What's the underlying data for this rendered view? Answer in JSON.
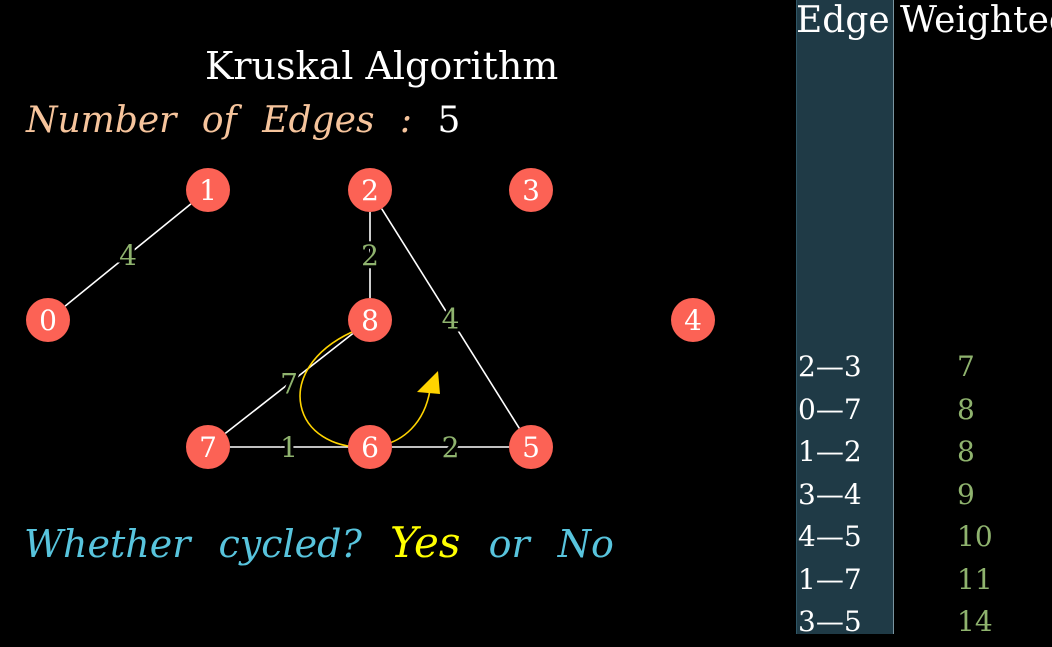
{
  "title": "Kruskal Algorithm",
  "num_edges": {
    "label": "Number   of   Edges :",
    "value": "5"
  },
  "graph": {
    "nodes": [
      {
        "id": "0",
        "label": "0"
      },
      {
        "id": "1",
        "label": "1"
      },
      {
        "id": "2",
        "label": "2"
      },
      {
        "id": "3",
        "label": "3"
      },
      {
        "id": "4",
        "label": "4"
      },
      {
        "id": "5",
        "label": "5"
      },
      {
        "id": "6",
        "label": "6"
      },
      {
        "id": "7",
        "label": "7"
      },
      {
        "id": "8",
        "label": "8"
      }
    ],
    "edges": [
      {
        "from": "0",
        "to": "1",
        "weight": "4"
      },
      {
        "from": "2",
        "to": "8",
        "weight": "2"
      },
      {
        "from": "2",
        "to": "5",
        "weight": "4"
      },
      {
        "from": "8",
        "to": "7",
        "weight": "7"
      },
      {
        "from": "7",
        "to": "6",
        "weight": "1"
      },
      {
        "from": "6",
        "to": "5",
        "weight": "2"
      }
    ],
    "node_color": "#fc6255",
    "edge_color": "#ffffff",
    "weight_color": "#8fb36e",
    "cycle_color": "#ffd400"
  },
  "cycle_question": {
    "prefix": "Whether   cycled?",
    "yes": "Yes",
    "or": "or",
    "no": "No"
  },
  "table": {
    "header_edge": "Edge",
    "header_weight": "Weighted",
    "rows": [
      {
        "edge": "2—3",
        "weight": "7"
      },
      {
        "edge": "0—7",
        "weight": "8"
      },
      {
        "edge": "1—2",
        "weight": "8"
      },
      {
        "edge": "3—4",
        "weight": "9"
      },
      {
        "edge": "4—5",
        "weight": "10"
      },
      {
        "edge": "1—7",
        "weight": "11"
      },
      {
        "edge": "3—5",
        "weight": "14"
      }
    ]
  }
}
